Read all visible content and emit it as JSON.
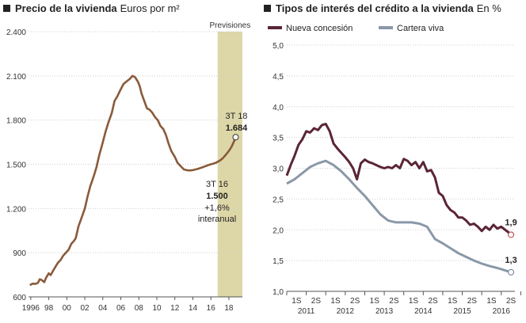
{
  "price_chart": {
    "title": "Precio de la vivienda",
    "unit": "Euros por m²",
    "forecast_label": "Previsiones",
    "annotation_latest": {
      "period": "3T 18",
      "value": "1.684"
    },
    "annotation_2016": {
      "period": "3T 16",
      "value": "1.500",
      "change": "+1,6%",
      "change_label": "interanual"
    },
    "colors": {
      "line": "#8a5a3a",
      "forecast_band": "#ddd7a8"
    }
  },
  "rates_chart": {
    "title": "Tipos de interés del crédito a la vivienda",
    "unit": "En %",
    "legend_new": "Nueva concesión",
    "legend_stock": "Cartera viva",
    "end_label_new": "1,9",
    "end_label_stock": "1,3",
    "colors": {
      "new": "#5a2535",
      "stock": "#8a98a8"
    }
  },
  "chart_data": [
    {
      "type": "line",
      "title": "Precio de la vivienda",
      "ylabel": "Euros por m²",
      "ylim": [
        600,
        2400
      ],
      "yticks": [
        600,
        900,
        1200,
        1500,
        1800,
        2100,
        2400
      ],
      "ytick_labels": [
        "600",
        "900",
        "1.200",
        "1.500",
        "1.800",
        "2.100",
        "2.400"
      ],
      "xlim": [
        1995.75,
        2019.5
      ],
      "xticks": [
        1996,
        1998,
        2000,
        2002,
        2004,
        2006,
        2008,
        2010,
        2012,
        2014,
        2016,
        2018
      ],
      "xtick_labels": [
        "1996",
        "98",
        "00",
        "02",
        "04",
        "06",
        "08",
        "10",
        "12",
        "14",
        "16",
        "18"
      ],
      "forecast_range": [
        2016.75,
        2019.5
      ],
      "series": [
        {
          "name": "Precio de la vivienda",
          "x": [
            1995.9,
            1996.2,
            1996.5,
            1996.8,
            1997.0,
            1997.2,
            1997.5,
            1997.7,
            1998.0,
            1998.2,
            1998.5,
            1998.7,
            1999.0,
            1999.3,
            1999.6,
            1999.9,
            2000.2,
            2000.5,
            2000.8,
            2001.0,
            2001.3,
            2001.6,
            2002.0,
            2002.3,
            2002.6,
            2003.0,
            2003.3,
            2003.6,
            2004.0,
            2004.3,
            2004.6,
            2005.0,
            2005.3,
            2005.6,
            2006.0,
            2006.3,
            2006.6,
            2007.0,
            2007.3,
            2007.6,
            2007.9,
            2008.1,
            2008.3,
            2008.6,
            2008.9,
            2009.2,
            2009.5,
            2009.8,
            2010.1,
            2010.4,
            2010.7,
            2011.0,
            2011.3,
            2011.6,
            2012.0,
            2012.3,
            2012.6,
            2013.0,
            2013.3,
            2013.6,
            2014.0,
            2014.3,
            2014.6,
            2015.0,
            2015.3,
            2015.6,
            2016.0,
            2016.3,
            2016.6,
            2017.0,
            2017.3,
            2017.6,
            2018.0,
            2018.3,
            2018.6,
            2018.75
          ],
          "values": [
            680,
            690,
            688,
            695,
            720,
            715,
            700,
            730,
            760,
            748,
            780,
            800,
            830,
            850,
            880,
            900,
            920,
            960,
            980,
            1000,
            1080,
            1130,
            1200,
            1280,
            1350,
            1420,
            1480,
            1560,
            1650,
            1720,
            1780,
            1850,
            1930,
            1960,
            2010,
            2045,
            2060,
            2080,
            2100,
            2090,
            2060,
            2030,
            1980,
            1930,
            1880,
            1870,
            1850,
            1820,
            1800,
            1760,
            1740,
            1700,
            1640,
            1590,
            1550,
            1510,
            1490,
            1465,
            1460,
            1458,
            1460,
            1465,
            1470,
            1478,
            1485,
            1492,
            1500,
            1505,
            1512,
            1525,
            1540,
            1560,
            1590,
            1620,
            1660,
            1684
          ]
        }
      ],
      "annotations": [
        "3T 18 1.684",
        "3T 16 1.500 +1,6% interanual",
        "Previsiones"
      ]
    },
    {
      "type": "line",
      "title": "Tipos de interés del crédito a la vivienda",
      "ylabel": "En %",
      "ylim": [
        1.0,
        5.0
      ],
      "yticks": [
        1.0,
        1.5,
        2.0,
        2.5,
        3.0,
        3.5,
        4.0,
        4.5,
        5.0
      ],
      "ytick_labels": [
        "1,0",
        "1,5",
        "2,0",
        "2,5",
        "3,0",
        "3,5",
        "4,0",
        "4,5",
        "5,0"
      ],
      "xlim": [
        2011.0,
        2016.85
      ],
      "half_year_ticks": [
        "1S",
        "2S",
        "1S",
        "2S",
        "1S",
        "2S",
        "1S",
        "2S",
        "1S",
        "2S",
        "1S",
        "2S"
      ],
      "year_labels": [
        "2011",
        "2012",
        "2013",
        "2014",
        "2015",
        "2016"
      ],
      "series": [
        {
          "name": "Nueva concesión",
          "x": [
            2011.0,
            2011.1,
            2011.2,
            2011.3,
            2011.4,
            2011.5,
            2011.6,
            2011.7,
            2011.8,
            2011.9,
            2012.0,
            2012.1,
            2012.2,
            2012.3,
            2012.4,
            2012.5,
            2012.6,
            2012.7,
            2012.8,
            2012.9,
            2013.0,
            2013.1,
            2013.2,
            2013.3,
            2013.4,
            2013.5,
            2013.6,
            2013.7,
            2013.8,
            2013.9,
            2014.0,
            2014.1,
            2014.2,
            2014.3,
            2014.4,
            2014.5,
            2014.6,
            2014.7,
            2014.8,
            2014.9,
            2015.0,
            2015.1,
            2015.2,
            2015.3,
            2015.4,
            2015.5,
            2015.6,
            2015.7,
            2015.8,
            2015.9,
            2016.0,
            2016.1,
            2016.2,
            2016.3,
            2016.4,
            2016.5,
            2016.6,
            2016.7,
            2016.75
          ],
          "values": [
            2.88,
            3.05,
            3.2,
            3.38,
            3.47,
            3.6,
            3.58,
            3.65,
            3.62,
            3.7,
            3.72,
            3.6,
            3.4,
            3.32,
            3.25,
            3.18,
            3.1,
            3.0,
            2.82,
            3.08,
            3.14,
            3.1,
            3.08,
            3.05,
            3.02,
            3.0,
            3.02,
            3.0,
            3.05,
            3.0,
            3.15,
            3.12,
            3.05,
            3.1,
            3.0,
            3.1,
            2.95,
            2.97,
            2.85,
            2.6,
            2.55,
            2.4,
            2.32,
            2.28,
            2.2,
            2.2,
            2.15,
            2.08,
            2.1,
            2.05,
            1.98,
            2.05,
            2.0,
            2.08,
            2.02,
            2.05,
            2.0,
            1.95,
            1.92
          ]
        },
        {
          "name": "Cartera viva",
          "x": [
            2011.0,
            2011.2,
            2011.4,
            2011.6,
            2011.8,
            2012.0,
            2012.2,
            2012.4,
            2012.6,
            2012.8,
            2013.0,
            2013.2,
            2013.4,
            2013.6,
            2013.8,
            2014.0,
            2014.2,
            2014.4,
            2014.6,
            2014.8,
            2015.0,
            2015.2,
            2015.4,
            2015.6,
            2015.8,
            2016.0,
            2016.2,
            2016.4,
            2016.6,
            2016.75
          ],
          "values": [
            2.75,
            2.82,
            2.92,
            3.02,
            3.08,
            3.12,
            3.05,
            2.95,
            2.82,
            2.68,
            2.55,
            2.4,
            2.25,
            2.15,
            2.12,
            2.12,
            2.12,
            2.1,
            2.05,
            1.85,
            1.78,
            1.7,
            1.62,
            1.56,
            1.5,
            1.45,
            1.41,
            1.38,
            1.34,
            1.31
          ]
        }
      ],
      "annotations": [
        "1,9",
        "1,3"
      ]
    }
  ]
}
